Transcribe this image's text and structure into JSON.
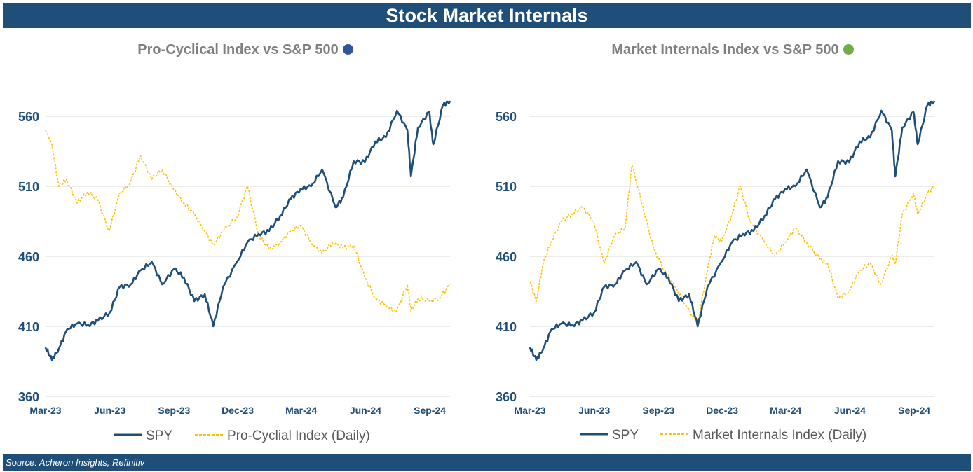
{
  "header": {
    "title": "Stock Market Internals"
  },
  "footer": {
    "source": "Source: Acheron Insights, Refinitiv"
  },
  "colors": {
    "spy": "#1f4e79",
    "index": "#ffc000",
    "left_dot": "#2f5597",
    "right_dot": "#70ad47",
    "grid": "#d9d9d9",
    "tick_text": "#1f4e79"
  },
  "chart_data": [
    {
      "type": "line",
      "title": "Pro-Cyclical Index vs S&P 500",
      "title_marker_icon": "blue-dot-icon",
      "y_ticks": [
        360,
        410,
        460,
        510,
        560
      ],
      "ylim": [
        360,
        570
      ],
      "x_ticks": [
        "Mar-23",
        "Jun-23",
        "Sep-23",
        "Dec-23",
        "Mar-24",
        "Jun-24",
        "Sep-24"
      ],
      "xlim": [
        "2023-03-01",
        "2024-09-30"
      ],
      "legend_position": "bottom",
      "series": [
        {
          "name": "SPY",
          "style": "solid",
          "points": [
            [
              "2023-03-01",
              395
            ],
            [
              "2023-03-10",
              386
            ],
            [
              "2023-03-20",
              394
            ],
            [
              "2023-04-01",
              408
            ],
            [
              "2023-04-15",
              412
            ],
            [
              "2023-05-01",
              411
            ],
            [
              "2023-05-15",
              414
            ],
            [
              "2023-06-01",
              420
            ],
            [
              "2023-06-15",
              438
            ],
            [
              "2023-07-01",
              440
            ],
            [
              "2023-07-15",
              450
            ],
            [
              "2023-07-31",
              456
            ],
            [
              "2023-08-15",
              440
            ],
            [
              "2023-09-01",
              451
            ],
            [
              "2023-09-15",
              445
            ],
            [
              "2023-09-30",
              428
            ],
            [
              "2023-10-15",
              433
            ],
            [
              "2023-10-27",
              410
            ],
            [
              "2023-11-10",
              438
            ],
            [
              "2023-11-30",
              456
            ],
            [
              "2023-12-15",
              470
            ],
            [
              "2023-12-31",
              476
            ],
            [
              "2024-01-15",
              478
            ],
            [
              "2024-01-31",
              489
            ],
            [
              "2024-02-15",
              501
            ],
            [
              "2024-02-29",
              508
            ],
            [
              "2024-03-15",
              510
            ],
            [
              "2024-03-31",
              522
            ],
            [
              "2024-04-19",
              495
            ],
            [
              "2024-04-30",
              502
            ],
            [
              "2024-05-15",
              528
            ],
            [
              "2024-05-31",
              527
            ],
            [
              "2024-06-15",
              542
            ],
            [
              "2024-06-30",
              545
            ],
            [
              "2024-07-16",
              564
            ],
            [
              "2024-07-31",
              550
            ],
            [
              "2024-08-05",
              517
            ],
            [
              "2024-08-15",
              552
            ],
            [
              "2024-08-31",
              563
            ],
            [
              "2024-09-06",
              540
            ],
            [
              "2024-09-20",
              568
            ],
            [
              "2024-09-30",
              571
            ]
          ]
        },
        {
          "name": "Pro-Cyclial Index (Daily)",
          "style": "dashed",
          "points": [
            [
              "2023-03-01",
              550
            ],
            [
              "2023-03-10",
              540
            ],
            [
              "2023-03-20",
              510
            ],
            [
              "2023-03-31",
              515
            ],
            [
              "2023-04-15",
              498
            ],
            [
              "2023-04-30",
              506
            ],
            [
              "2023-05-15",
              500
            ],
            [
              "2023-05-31",
              478
            ],
            [
              "2023-06-15",
              505
            ],
            [
              "2023-06-30",
              512
            ],
            [
              "2023-07-15",
              532
            ],
            [
              "2023-07-31",
              515
            ],
            [
              "2023-08-15",
              522
            ],
            [
              "2023-08-31",
              508
            ],
            [
              "2023-09-15",
              498
            ],
            [
              "2023-09-30",
              490
            ],
            [
              "2023-10-15",
              478
            ],
            [
              "2023-10-27",
              468
            ],
            [
              "2023-11-10",
              478
            ],
            [
              "2023-11-30",
              488
            ],
            [
              "2023-12-15",
              510
            ],
            [
              "2023-12-31",
              475
            ],
            [
              "2024-01-15",
              465
            ],
            [
              "2024-01-31",
              470
            ],
            [
              "2024-02-15",
              478
            ],
            [
              "2024-02-29",
              482
            ],
            [
              "2024-03-15",
              470
            ],
            [
              "2024-03-31",
              462
            ],
            [
              "2024-04-15",
              470
            ],
            [
              "2024-04-30",
              466
            ],
            [
              "2024-05-15",
              468
            ],
            [
              "2024-05-31",
              445
            ],
            [
              "2024-06-15",
              430
            ],
            [
              "2024-06-30",
              425
            ],
            [
              "2024-07-15",
              420
            ],
            [
              "2024-07-31",
              440
            ],
            [
              "2024-08-05",
              421
            ],
            [
              "2024-08-15",
              430
            ],
            [
              "2024-08-31",
              428
            ],
            [
              "2024-09-15",
              430
            ],
            [
              "2024-09-30",
              440
            ]
          ]
        }
      ]
    },
    {
      "type": "line",
      "title": "Market Internals Index vs S&P 500",
      "title_marker_icon": "green-dot-icon",
      "y_ticks": [
        360,
        410,
        460,
        510,
        560
      ],
      "ylim": [
        360,
        570
      ],
      "x_ticks": [
        "Mar-23",
        "Jun-23",
        "Sep-23",
        "Dec-23",
        "Mar-24",
        "Jun-24",
        "Sep-24"
      ],
      "xlim": [
        "2023-03-01",
        "2024-09-30"
      ],
      "legend_position": "bottom",
      "series": [
        {
          "name": "SPY",
          "style": "solid",
          "points": [
            [
              "2023-03-01",
              395
            ],
            [
              "2023-03-10",
              386
            ],
            [
              "2023-03-20",
              394
            ],
            [
              "2023-04-01",
              408
            ],
            [
              "2023-04-15",
              412
            ],
            [
              "2023-05-01",
              411
            ],
            [
              "2023-05-15",
              414
            ],
            [
              "2023-06-01",
              420
            ],
            [
              "2023-06-15",
              438
            ],
            [
              "2023-07-01",
              440
            ],
            [
              "2023-07-15",
              450
            ],
            [
              "2023-07-31",
              456
            ],
            [
              "2023-08-15",
              440
            ],
            [
              "2023-09-01",
              451
            ],
            [
              "2023-09-15",
              445
            ],
            [
              "2023-09-30",
              428
            ],
            [
              "2023-10-15",
              433
            ],
            [
              "2023-10-27",
              410
            ],
            [
              "2023-11-10",
              438
            ],
            [
              "2023-11-30",
              456
            ],
            [
              "2023-12-15",
              470
            ],
            [
              "2023-12-31",
              476
            ],
            [
              "2024-01-15",
              478
            ],
            [
              "2024-01-31",
              489
            ],
            [
              "2024-02-15",
              501
            ],
            [
              "2024-02-29",
              508
            ],
            [
              "2024-03-15",
              510
            ],
            [
              "2024-03-31",
              522
            ],
            [
              "2024-04-19",
              495
            ],
            [
              "2024-04-30",
              502
            ],
            [
              "2024-05-15",
              528
            ],
            [
              "2024-05-31",
              527
            ],
            [
              "2024-06-15",
              542
            ],
            [
              "2024-06-30",
              545
            ],
            [
              "2024-07-16",
              564
            ],
            [
              "2024-07-31",
              550
            ],
            [
              "2024-08-05",
              517
            ],
            [
              "2024-08-15",
              552
            ],
            [
              "2024-08-31",
              563
            ],
            [
              "2024-09-06",
              540
            ],
            [
              "2024-09-20",
              568
            ],
            [
              "2024-09-30",
              571
            ]
          ]
        },
        {
          "name": "Market Internals Index (Daily)",
          "style": "dashed",
          "points": [
            [
              "2023-03-01",
              442
            ],
            [
              "2023-03-10",
              428
            ],
            [
              "2023-03-20",
              455
            ],
            [
              "2023-03-31",
              470
            ],
            [
              "2023-04-15",
              485
            ],
            [
              "2023-04-30",
              490
            ],
            [
              "2023-05-15",
              495
            ],
            [
              "2023-05-31",
              485
            ],
            [
              "2023-06-15",
              455
            ],
            [
              "2023-06-30",
              475
            ],
            [
              "2023-07-15",
              480
            ],
            [
              "2023-07-25",
              525
            ],
            [
              "2023-08-10",
              495
            ],
            [
              "2023-08-25",
              465
            ],
            [
              "2023-09-10",
              450
            ],
            [
              "2023-09-25",
              438
            ],
            [
              "2023-10-10",
              425
            ],
            [
              "2023-10-27",
              412
            ],
            [
              "2023-11-10",
              450
            ],
            [
              "2023-11-20",
              475
            ],
            [
              "2023-11-30",
              470
            ],
            [
              "2023-12-15",
              490
            ],
            [
              "2023-12-27",
              510
            ],
            [
              "2024-01-10",
              485
            ],
            [
              "2024-01-31",
              470
            ],
            [
              "2024-02-15",
              460
            ],
            [
              "2024-02-29",
              470
            ],
            [
              "2024-03-15",
              480
            ],
            [
              "2024-03-31",
              470
            ],
            [
              "2024-04-19",
              458
            ],
            [
              "2024-04-30",
              455
            ],
            [
              "2024-05-15",
              430
            ],
            [
              "2024-05-31",
              435
            ],
            [
              "2024-06-15",
              450
            ],
            [
              "2024-06-30",
              455
            ],
            [
              "2024-07-15",
              440
            ],
            [
              "2024-07-31",
              460
            ],
            [
              "2024-08-05",
              455
            ],
            [
              "2024-08-15",
              490
            ],
            [
              "2024-08-31",
              505
            ],
            [
              "2024-09-06",
              490
            ],
            [
              "2024-09-20",
              505
            ],
            [
              "2024-09-30",
              510
            ]
          ]
        }
      ]
    }
  ]
}
